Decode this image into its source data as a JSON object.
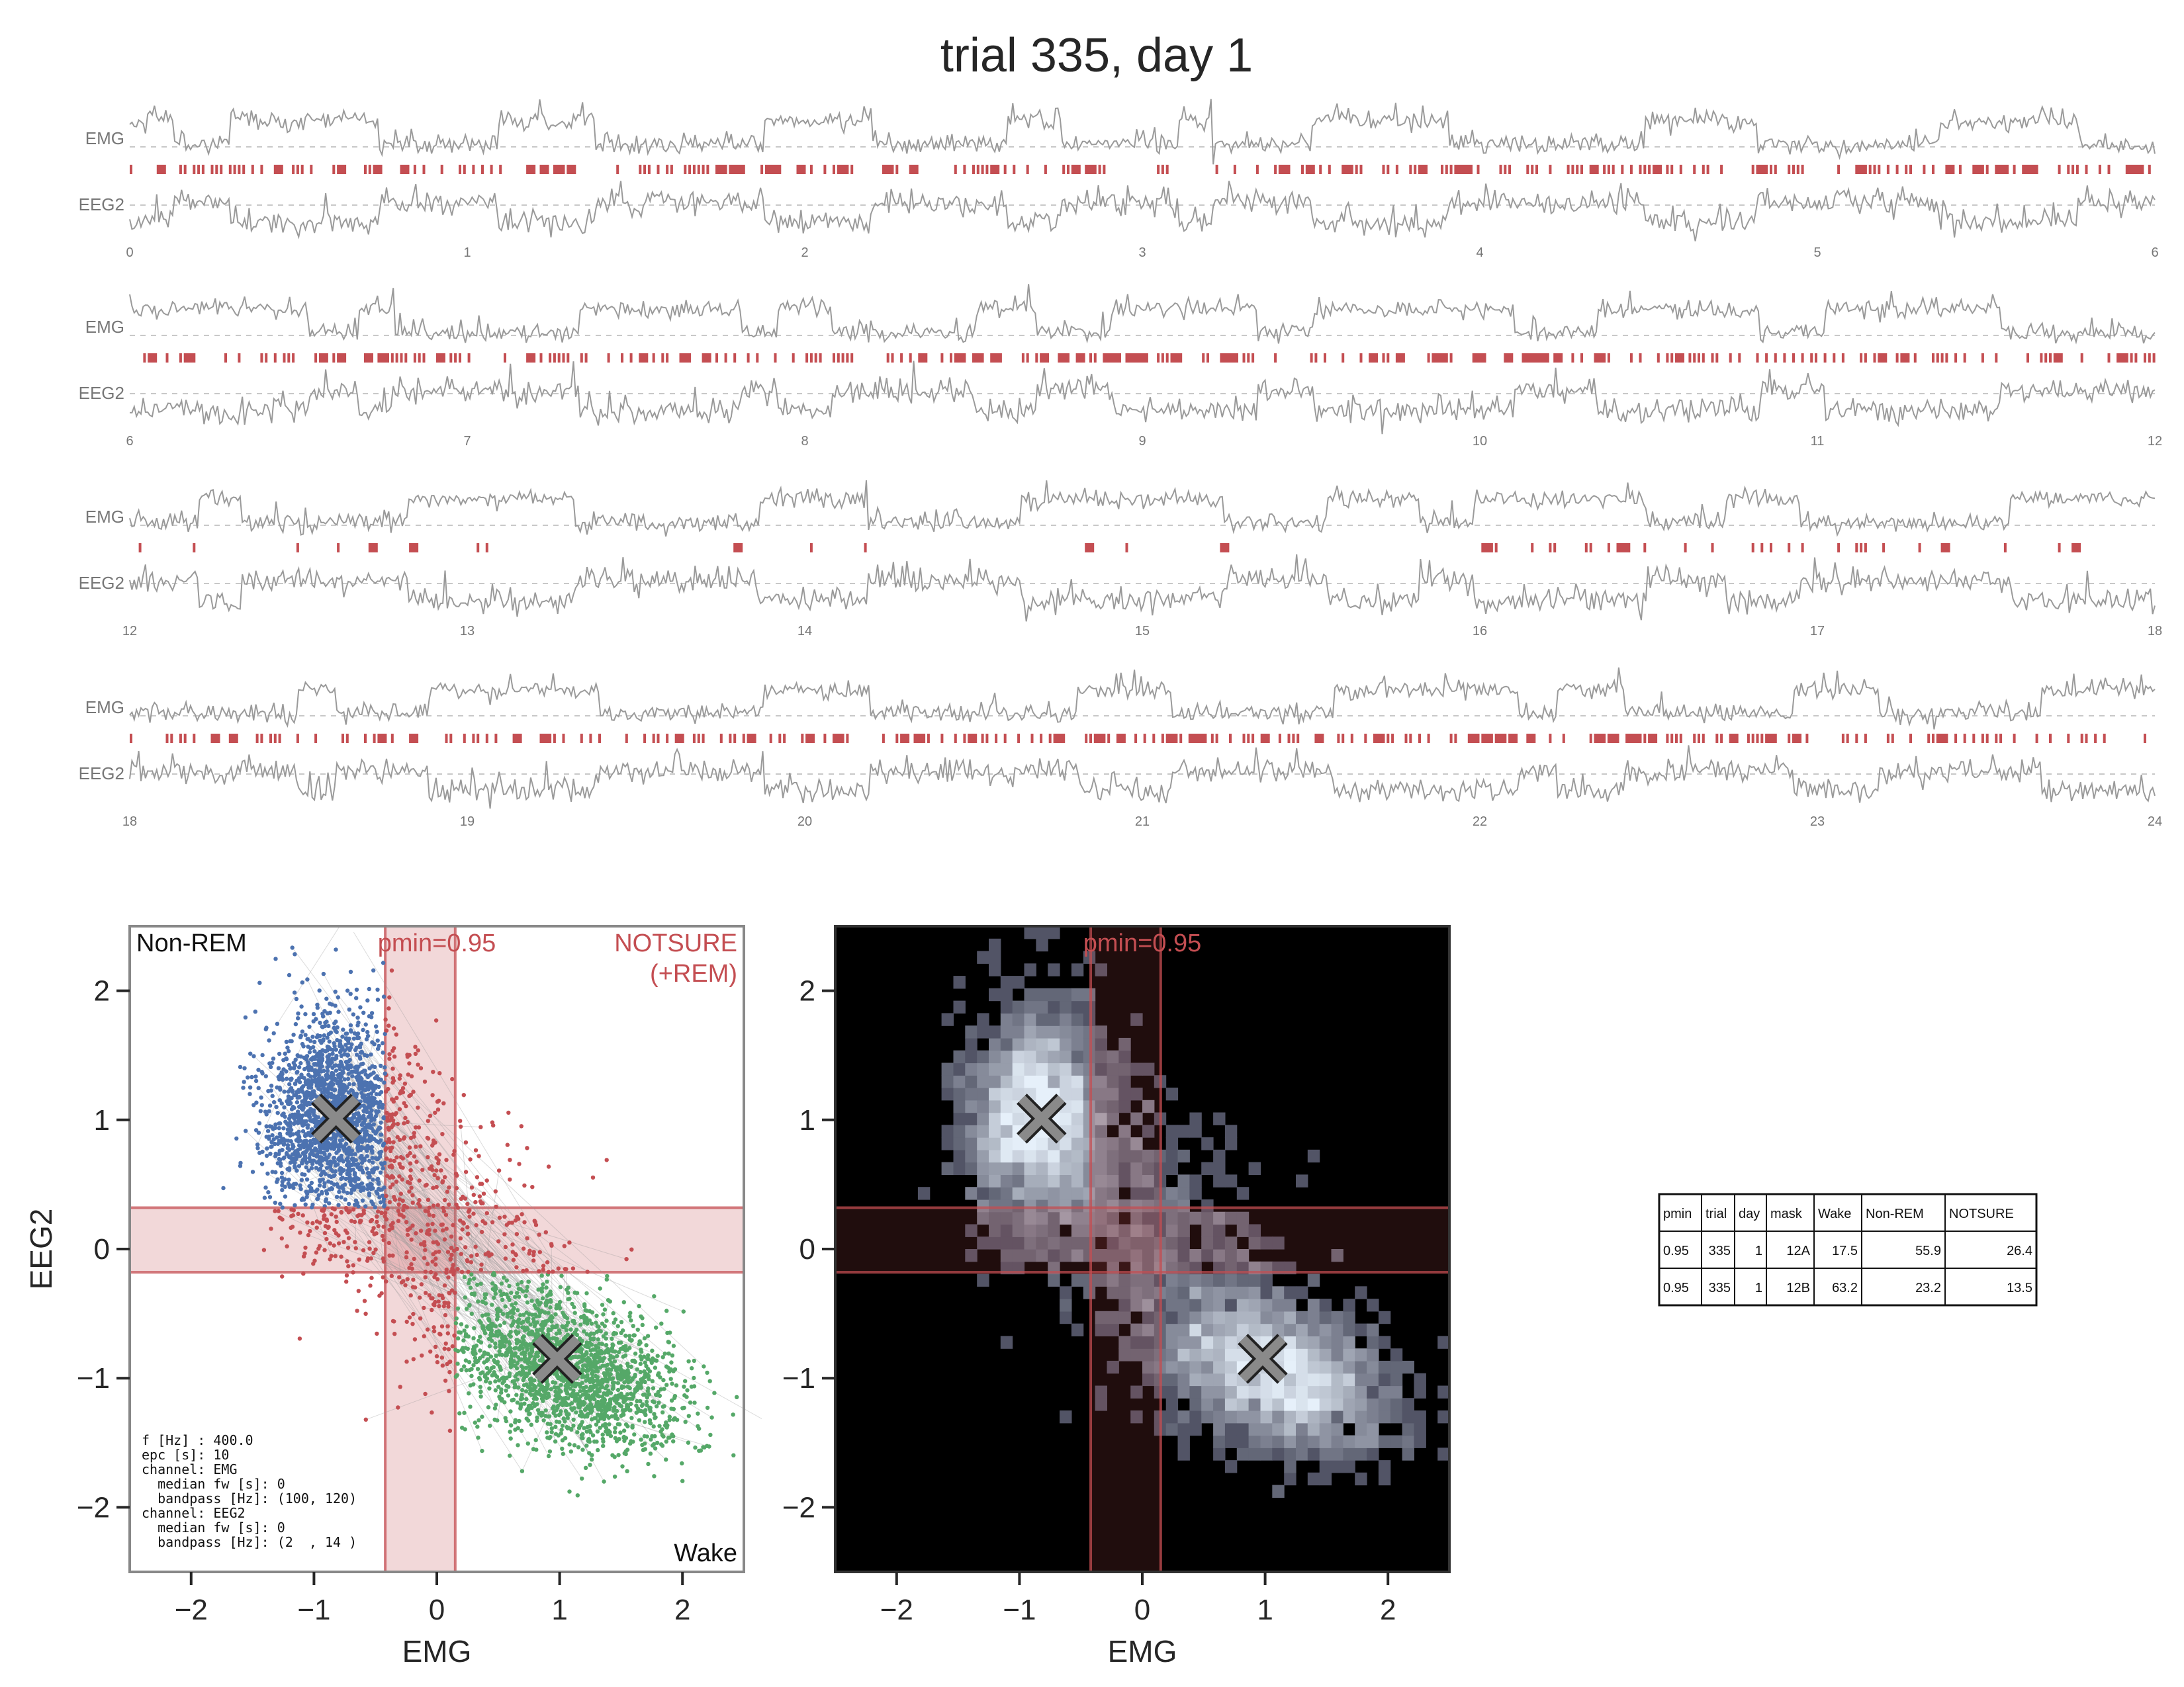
{
  "title": "trial 335, day 1",
  "colors": {
    "trace": "#9a9a9a",
    "marker": "#c44e52",
    "nonrem": "#4c72b0",
    "wake": "#55a868",
    "notsure": "#c44e52",
    "text": "#262626"
  },
  "traces": {
    "channel_labels": [
      "EMG",
      "EEG2"
    ],
    "rows": [
      {
        "hours": [
          "0",
          "1",
          "2",
          "3",
          "4",
          "5",
          "6"
        ]
      },
      {
        "hours": [
          "6",
          "7",
          "8",
          "9",
          "10",
          "11",
          "12"
        ]
      },
      {
        "hours": [
          "12",
          "13",
          "14",
          "15",
          "16",
          "17",
          "18"
        ]
      },
      {
        "hours": [
          "18",
          "19",
          "20",
          "21",
          "22",
          "23",
          "24"
        ]
      }
    ]
  },
  "chart_data": [
    {
      "type": "scatter",
      "xlabel": "EMG",
      "ylabel": "EEG2",
      "xlim": [
        -2.5,
        2.5
      ],
      "ylim": [
        -2.5,
        2.5
      ],
      "xticks": [
        "−2",
        "−1",
        "0",
        "1",
        "2"
      ],
      "yticks": [
        "−2",
        "−1",
        "0",
        "1",
        "2"
      ],
      "threshold_label": "pmin=0.95",
      "emg_band": [
        -0.42,
        0.15
      ],
      "eeg2_band": [
        -0.18,
        0.32
      ],
      "clusters": [
        {
          "name": "Non-REM",
          "center": [
            -0.82,
            1.01
          ]
        },
        {
          "name": "Wake",
          "center": [
            0.98,
            -0.85
          ]
        }
      ],
      "corner_labels": {
        "top_left": "Non-REM",
        "top_right_line1": "NOTSURE",
        "top_right_line2": "(+REM)",
        "bottom_right": "Wake"
      },
      "info_text": [
        "f [Hz] : 400.0",
        "epc [s]: 10",
        "channel: EMG",
        "  median fw [s]: 0",
        "  bandpass [Hz]: (100, 120)",
        "channel: EEG2",
        "  median fw [s]: 0",
        "  bandpass [Hz]: (2  , 14 )"
      ]
    },
    {
      "type": "heatmap",
      "xlabel": "EMG",
      "xlim": [
        -2.5,
        2.5
      ],
      "ylim": [
        -2.5,
        2.5
      ],
      "xticks": [
        "−2",
        "−1",
        "0",
        "1",
        "2"
      ],
      "yticks": [
        "−2",
        "−1",
        "0",
        "1",
        "2"
      ],
      "threshold_label": "pmin=0.95",
      "emg_band": [
        -0.42,
        0.15
      ],
      "eeg2_band": [
        -0.18,
        0.32
      ],
      "clusters": [
        {
          "center": [
            -0.82,
            1.01
          ]
        },
        {
          "center": [
            0.98,
            -0.85
          ]
        }
      ]
    },
    {
      "type": "table",
      "columns": [
        "pmin",
        "trial",
        "day",
        "mask",
        "Wake",
        "Non-REM",
        "NOTSURE"
      ],
      "rows": [
        [
          "0.95",
          "335",
          "1",
          "12A",
          "17.5",
          "55.9",
          "26.4"
        ],
        [
          "0.95",
          "335",
          "1",
          "12B",
          "63.2",
          "23.2",
          "13.5"
        ]
      ]
    }
  ]
}
